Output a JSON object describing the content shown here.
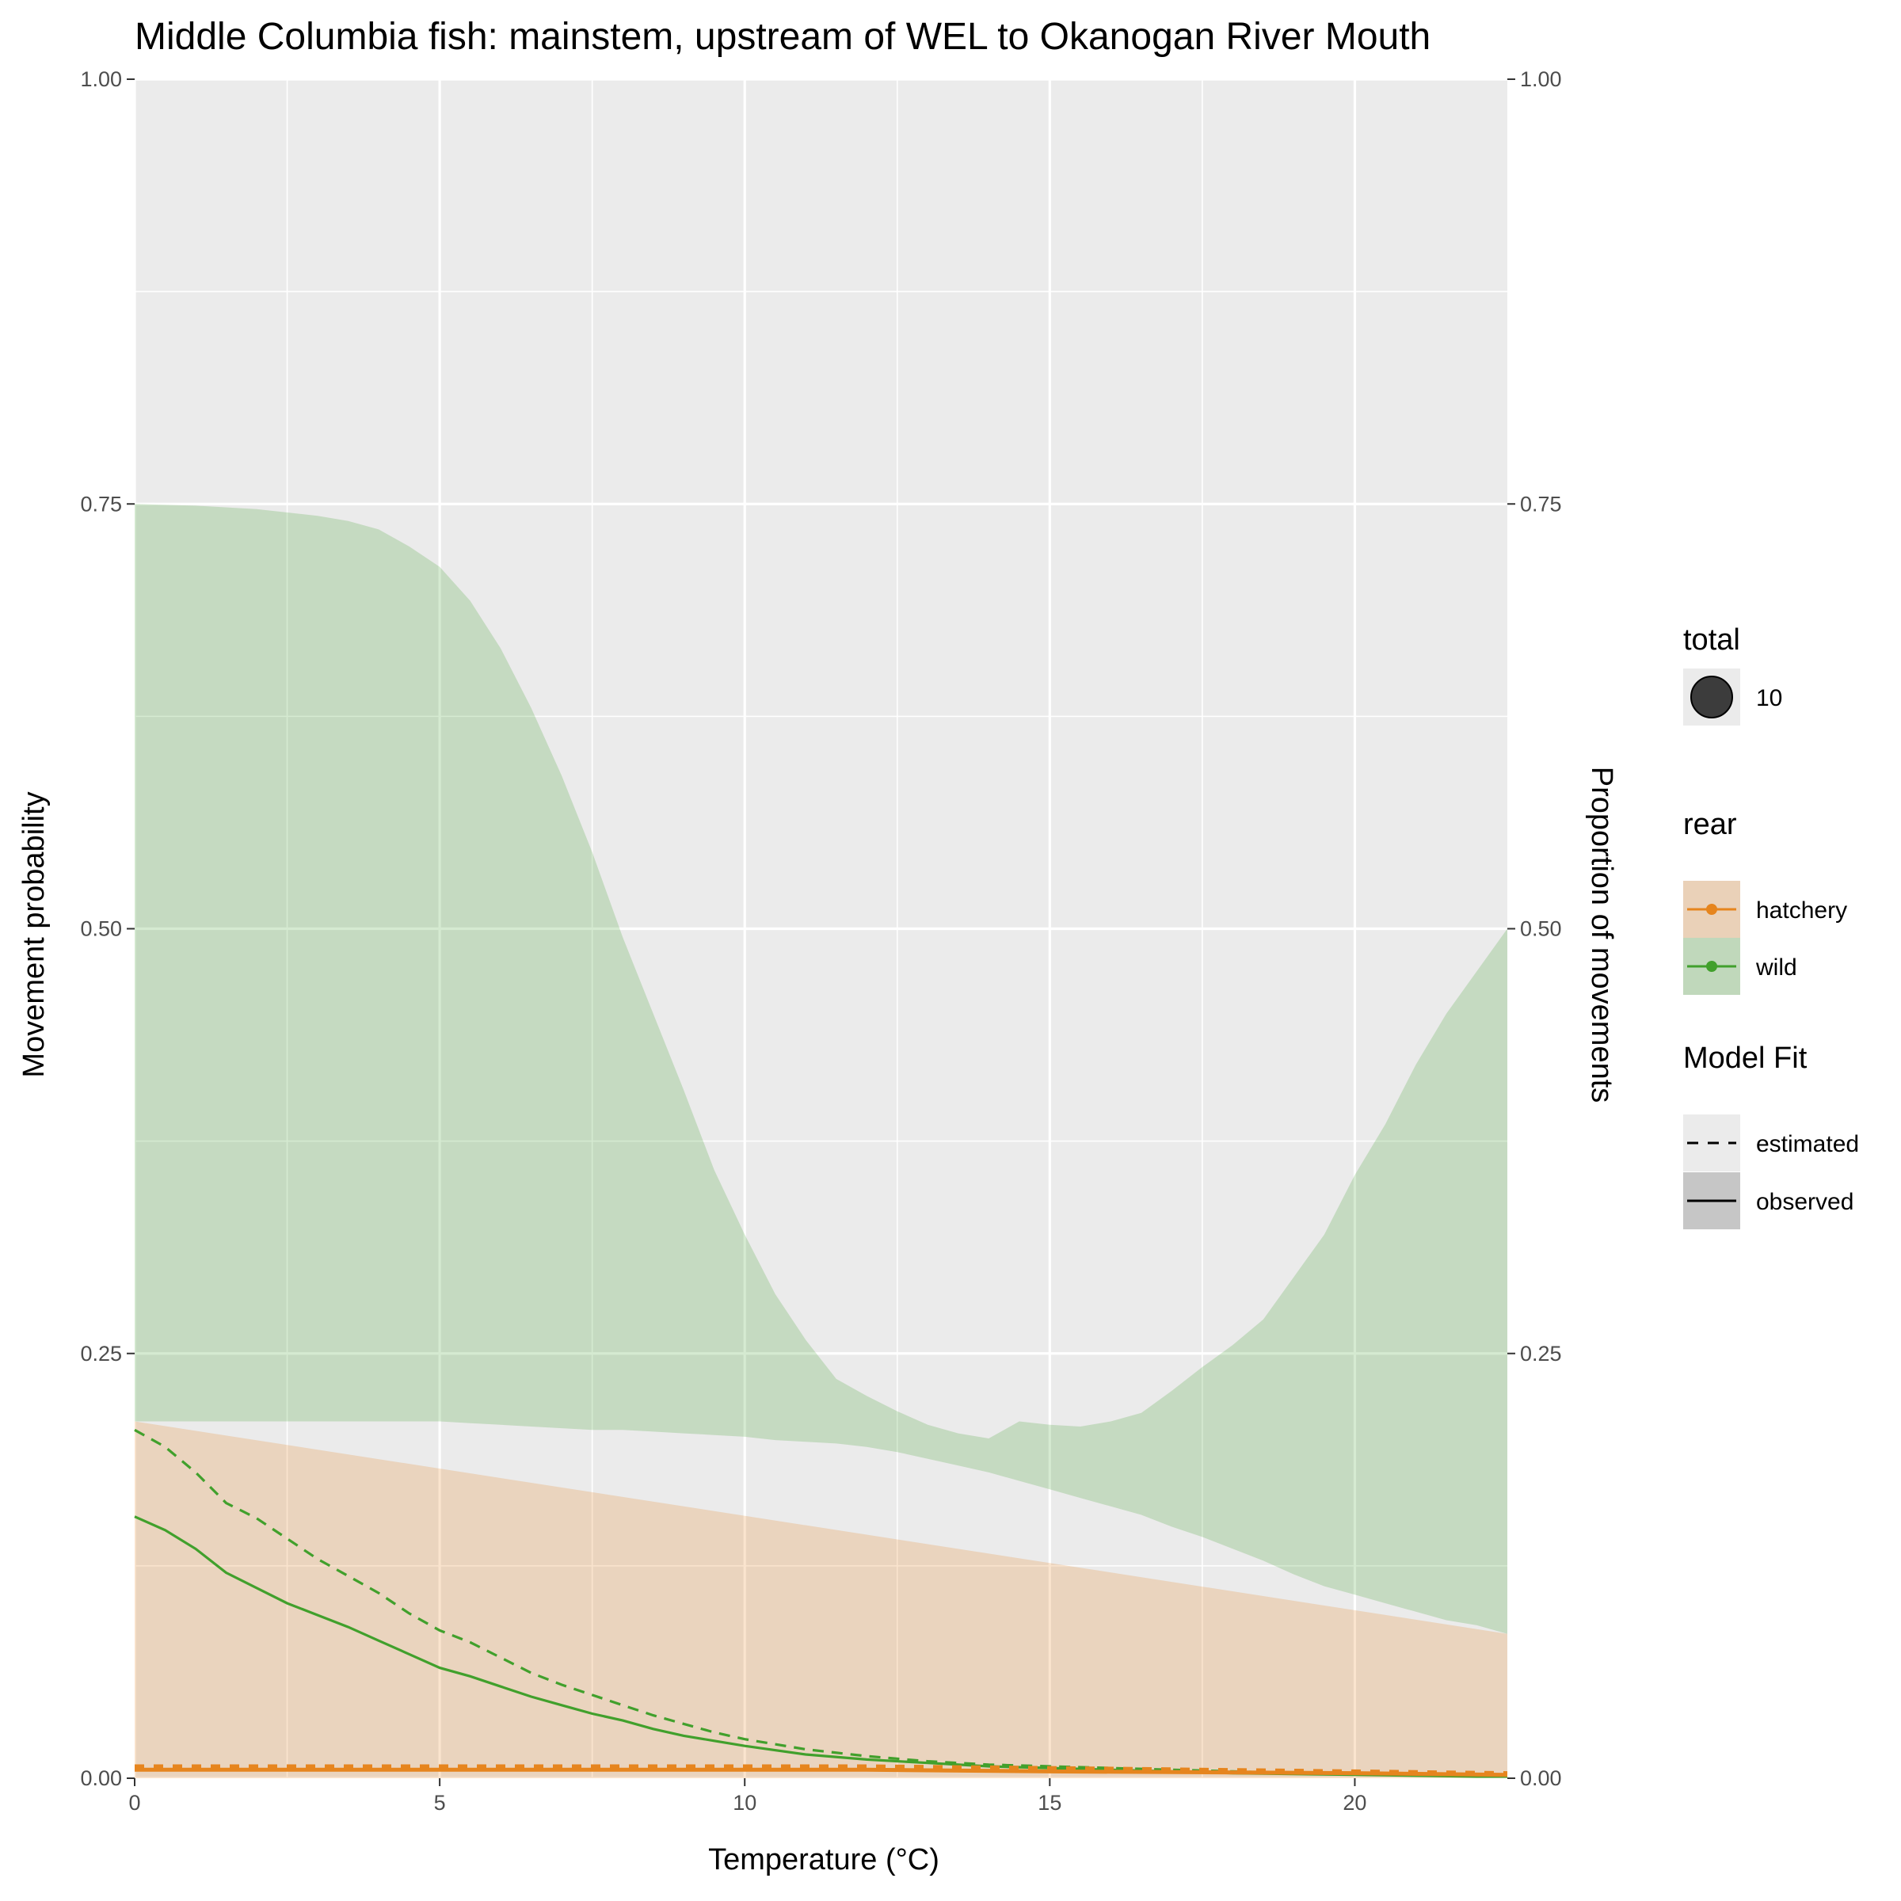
{
  "chart_data": {
    "type": "area",
    "title": "Middle Columbia fish: mainstem, upstream of WEL to Okanogan River Mouth",
    "xlabel": "Temperature (°C)",
    "ylabel": "Movement probability",
    "ylabel_right": "Proportion of movements",
    "xlim": [
      0,
      22.5
    ],
    "ylim": [
      0,
      1
    ],
    "x_ticks": [
      0,
      5,
      10,
      15,
      20
    ],
    "x_tick_labels": [
      "0",
      "5",
      "10",
      "15",
      "20"
    ],
    "y_ticks": [
      0,
      0.25,
      0.5,
      0.75,
      1
    ],
    "y_tick_labels": [
      "0.00",
      "0.25",
      "0.50",
      "0.75",
      "1.00"
    ],
    "grid": true,
    "colors": {
      "hatchery": "#E6851E",
      "wild": "#41A02C",
      "panel_bg": "#EBEBEB",
      "grid": "#FFFFFF"
    },
    "ribbons": [
      {
        "name": "wild",
        "x": [
          0,
          1,
          2,
          3,
          3.5,
          4,
          4.5,
          5,
          5.5,
          6,
          6.5,
          7,
          7.5,
          8,
          8.5,
          9,
          9.5,
          10,
          10.5,
          11,
          11.5,
          12,
          12.5,
          13,
          13.5,
          14,
          14.5,
          15,
          15.5,
          16,
          16.5,
          17,
          17.5,
          18,
          18.5,
          19,
          19.5,
          20,
          20.5,
          21,
          21.5,
          22,
          22.5
        ],
        "lower": [
          0.21,
          0.21,
          0.21,
          0.21,
          0.21,
          0.21,
          0.21,
          0.21,
          0.209,
          0.208,
          0.207,
          0.206,
          0.205,
          0.205,
          0.204,
          0.203,
          0.202,
          0.201,
          0.199,
          0.198,
          0.197,
          0.195,
          0.192,
          0.188,
          0.184,
          0.18,
          0.175,
          0.17,
          0.165,
          0.16,
          0.155,
          0.148,
          0.142,
          0.135,
          0.128,
          0.12,
          0.113,
          0.108,
          0.103,
          0.098,
          0.093,
          0.09,
          0.085
        ],
        "upper": [
          0.75,
          0.749,
          0.747,
          0.743,
          0.74,
          0.735,
          0.725,
          0.713,
          0.693,
          0.665,
          0.63,
          0.59,
          0.545,
          0.495,
          0.45,
          0.405,
          0.358,
          0.32,
          0.285,
          0.258,
          0.235,
          0.225,
          0.216,
          0.208,
          0.203,
          0.2,
          0.21,
          0.208,
          0.207,
          0.21,
          0.215,
          0.228,
          0.242,
          0.255,
          0.27,
          0.295,
          0.32,
          0.355,
          0.385,
          0.42,
          0.45,
          0.475,
          0.5
        ]
      },
      {
        "name": "hatchery",
        "x": [
          0,
          22.5
        ],
        "lower": [
          0,
          0
        ],
        "upper": [
          0.21,
          0.085
        ]
      }
    ],
    "series": [
      {
        "name": "wild",
        "model_fit": "estimated",
        "x": [
          0,
          0.5,
          1,
          1.5,
          2,
          2.5,
          3,
          3.5,
          4,
          4.5,
          5,
          5.5,
          6,
          6.5,
          7,
          7.5,
          8,
          8.5,
          9,
          9.5,
          10,
          11,
          12,
          13,
          14,
          15,
          16,
          17,
          18,
          19,
          20,
          21,
          22,
          22.5
        ],
        "values": [
          0.205,
          0.195,
          0.18,
          0.162,
          0.153,
          0.141,
          0.129,
          0.119,
          0.109,
          0.097,
          0.087,
          0.08,
          0.071,
          0.062,
          0.055,
          0.049,
          0.043,
          0.037,
          0.032,
          0.027,
          0.023,
          0.017,
          0.013,
          0.01,
          0.008,
          0.007,
          0.006,
          0.005,
          0.004,
          0.003,
          0.0025,
          0.0018,
          0.0012,
          0.001
        ]
      },
      {
        "name": "wild",
        "model_fit": "observed",
        "x": [
          0,
          0.5,
          1,
          1.5,
          2,
          2.5,
          3,
          3.5,
          4,
          4.5,
          5,
          5.5,
          6,
          6.5,
          7,
          7.5,
          8,
          8.5,
          9,
          9.5,
          10,
          11,
          12,
          13,
          14,
          15,
          16,
          17,
          18,
          19,
          20,
          21,
          22,
          22.5
        ],
        "values": [
          0.154,
          0.146,
          0.135,
          0.121,
          0.112,
          0.103,
          0.096,
          0.089,
          0.081,
          0.073,
          0.065,
          0.06,
          0.054,
          0.048,
          0.043,
          0.038,
          0.034,
          0.029,
          0.025,
          0.022,
          0.019,
          0.014,
          0.011,
          0.009,
          0.007,
          0.006,
          0.005,
          0.004,
          0.003,
          0.0025,
          0.002,
          0.0015,
          0.001,
          0.001
        ]
      },
      {
        "name": "hatchery",
        "model_fit": "estimated",
        "x": [
          0,
          5,
          10,
          12,
          15,
          20,
          22.5
        ],
        "values": [
          0.007,
          0.007,
          0.007,
          0.007,
          0.006,
          0.004,
          0.003
        ]
      },
      {
        "name": "hatchery",
        "model_fit": "observed",
        "x": [
          0,
          5,
          10,
          12,
          15,
          20,
          22.5
        ],
        "values": [
          0.005,
          0.005,
          0.005,
          0.005,
          0.004,
          0.003,
          0.002
        ]
      }
    ],
    "legend": {
      "placement": "right",
      "groups": [
        {
          "title": "total",
          "items": [
            {
              "label": "10",
              "key": "point"
            }
          ]
        },
        {
          "title": "rear",
          "items": [
            {
              "label": "hatchery",
              "key": "hatchery"
            },
            {
              "label": "wild",
              "key": "wild"
            }
          ]
        },
        {
          "title": "Model Fit",
          "items": [
            {
              "label": "estimated",
              "key": "dashed"
            },
            {
              "label": "observed",
              "key": "solid"
            }
          ]
        }
      ]
    }
  }
}
